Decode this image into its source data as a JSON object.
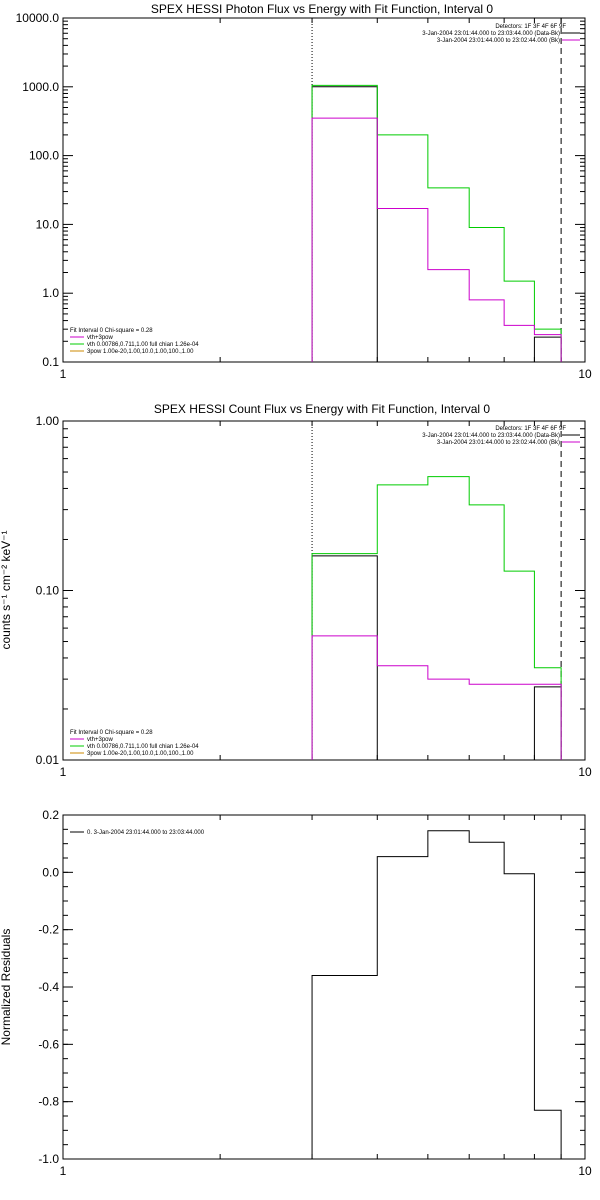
{
  "chart_data": [
    {
      "type": "line",
      "title": "SPEX HESSI Photon Flux vs Energy with Fit Function, Interval 0",
      "ylabel": "",
      "xlabel": "",
      "x_scale": "log",
      "y_scale": "log",
      "xlim": [
        1,
        10
      ],
      "ylim": [
        0.1,
        10000
      ],
      "x_ticks": [
        "1",
        "10"
      ],
      "y_ticks": [
        "0.1",
        "1.0",
        "10.0",
        "100.0",
        "1000.0",
        "10000.0"
      ],
      "y_tick_values": [
        0.1,
        1,
        10,
        100,
        1000,
        10000
      ],
      "grid": false,
      "vlines": [
        {
          "x": 3.0,
          "style": "dotted"
        },
        {
          "x": 9.0,
          "style": "dashed"
        }
      ],
      "legend_top_right": {
        "lines": [
          "Detectors: 1F 3F 4F 6F 9F",
          "3-Jan-2004 23:01:44.000 to 23:03:44.000 (Data-Bk)",
          "3-Jan-2004 23:01:44.000 to 23:02:44.000 (Bk)"
        ],
        "colors": [
          "",
          "#000000",
          "#cc00cc"
        ]
      },
      "legend_bottom_left": {
        "lines": [
          "Fit Interval 0   Chi-square = 0.28",
          "vth+3pow",
          "vth 0.00786,0.711,1.00  full chian 1.26e-04",
          "3pow 1.00e-20,1.00,10.0,1.00,100.,1.00"
        ],
        "colors": [
          "",
          "#cc00cc",
          "#00cc00",
          "#cc8800"
        ]
      },
      "bin_edges": [
        3,
        4,
        5,
        6,
        7,
        8,
        9
      ],
      "series": [
        {
          "color": "#000000",
          "values": [
            1000,
            null,
            null,
            null,
            null,
            0.23
          ]
        },
        {
          "color": "#00cc00",
          "values": [
            1050,
            200,
            34,
            9,
            1.5,
            0.3
          ]
        },
        {
          "color": "#cc00cc",
          "values": [
            350,
            17,
            2.2,
            0.8,
            0.34,
            0.25
          ]
        }
      ]
    },
    {
      "type": "line",
      "title": "SPEX HESSI Count Flux vs Energy with Fit Function, Interval 0",
      "ylabel": "counts s⁻¹ cm⁻² keV⁻¹",
      "xlabel": "",
      "x_scale": "log",
      "y_scale": "log",
      "xlim": [
        1,
        10
      ],
      "ylim": [
        0.01,
        1.0
      ],
      "x_ticks": [
        "1",
        "10"
      ],
      "y_ticks": [
        "0.01",
        "0.10",
        "1.00"
      ],
      "y_tick_values": [
        0.01,
        0.1,
        1.0
      ],
      "grid": false,
      "vlines": [
        {
          "x": 3.0,
          "style": "dotted"
        },
        {
          "x": 9.0,
          "style": "dashed"
        }
      ],
      "legend_top_right": {
        "lines": [
          "Detectors: 1F 3F 4F 6F 9F",
          "3-Jan-2004 23:01:44.000 to 23:03:44.000 (Data-Bk)",
          "3-Jan-2004 23:01:44.000 to 23:02:44.000 (Bk)"
        ],
        "colors": [
          "",
          "#000000",
          "#cc00cc"
        ]
      },
      "legend_bottom_left": {
        "lines": [
          "Fit Interval 0   Chi-square = 0.28",
          "vth+3pow",
          "vth 0.00786,0.711,1.00  full chian 1.26e-04",
          "3pow 1.00e-20,1.00,10.0,1.00,100.,1.00"
        ],
        "colors": [
          "",
          "#cc00cc",
          "#00cc00",
          "#cc8800"
        ]
      },
      "bin_edges": [
        3,
        4,
        5,
        6,
        7,
        8,
        9
      ],
      "series": [
        {
          "color": "#000000",
          "values": [
            0.16,
            null,
            null,
            null,
            null,
            0.027
          ]
        },
        {
          "color": "#00cc00",
          "values": [
            0.165,
            0.42,
            0.47,
            0.32,
            0.13,
            0.035
          ]
        },
        {
          "color": "#cc00cc",
          "values": [
            0.054,
            0.036,
            0.03,
            0.028,
            0.028,
            0.028
          ]
        }
      ]
    },
    {
      "type": "line",
      "title": "",
      "ylabel": "Normalized Residuals",
      "xlabel": "",
      "x_scale": "log",
      "y_scale": "linear",
      "xlim": [
        1,
        10
      ],
      "ylim": [
        -1.0,
        0.2
      ],
      "x_ticks": [
        "1",
        "10"
      ],
      "y_ticks": [
        "-1.0",
        "-0.8",
        "-0.6",
        "-0.4",
        "-0.2",
        "0.0",
        "0.2"
      ],
      "y_tick_values": [
        -1.0,
        -0.8,
        -0.6,
        -0.4,
        -0.2,
        0.0,
        0.2
      ],
      "grid": false,
      "vlines": [],
      "legend_top_left": {
        "lines": [
          "0.  3-Jan-2004 23:01:44.000 to 23:03:44.000"
        ],
        "colors": [
          "#000000"
        ]
      },
      "bin_edges": [
        3,
        4,
        5,
        6,
        7,
        8,
        9
      ],
      "series": [
        {
          "color": "#000000",
          "values": [
            -0.36,
            0.055,
            0.145,
            0.105,
            -0.005,
            -0.83
          ]
        }
      ]
    }
  ]
}
